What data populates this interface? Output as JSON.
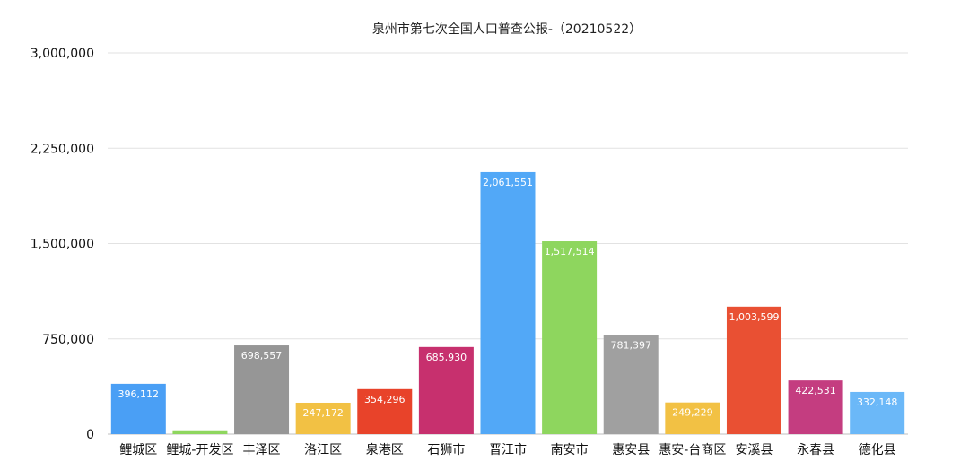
{
  "chart_data": {
    "type": "bar",
    "title": "泉州市第七次全国人口普查公报-（20210522）",
    "xlabel": "",
    "ylabel": "",
    "ylim": [
      0,
      3000000
    ],
    "yticks": [
      {
        "value": 0,
        "label": "0"
      },
      {
        "value": 750000,
        "label": "750,000"
      },
      {
        "value": 1500000,
        "label": "1,500,000"
      },
      {
        "value": 2250000,
        "label": "2,250,000"
      },
      {
        "value": 3000000,
        "label": "3,000,000"
      }
    ],
    "grid": true,
    "legend": "none",
    "categories": [
      "鲤城区",
      "鲤城-开发区",
      "丰泽区",
      "洛江区",
      "泉港区",
      "石狮市",
      "晋江市",
      "南安市",
      "惠安县",
      "惠安-台商区",
      "安溪县",
      "永春县",
      "德化县"
    ],
    "values": [
      396112,
      30000,
      698557,
      247172,
      354296,
      685930,
      2061551,
      1517514,
      781397,
      249229,
      1003599,
      422531,
      332148
    ],
    "data_labels": [
      "396,112",
      "",
      "698,557",
      "247,172",
      "354,296",
      "685,930",
      "2,061,551",
      "1,517,514",
      "781,397",
      "249,229",
      "1,003,599",
      "422,531",
      "332,148"
    ],
    "colors": [
      "#4A9FF5",
      "#8ED65E",
      "#969696",
      "#F2C144",
      "#E8432A",
      "#C7306E",
      "#52A8F7",
      "#8ED65E",
      "#A0A0A0",
      "#F2C144",
      "#E95033",
      "#C43D80",
      "#6BB8F8"
    ]
  }
}
